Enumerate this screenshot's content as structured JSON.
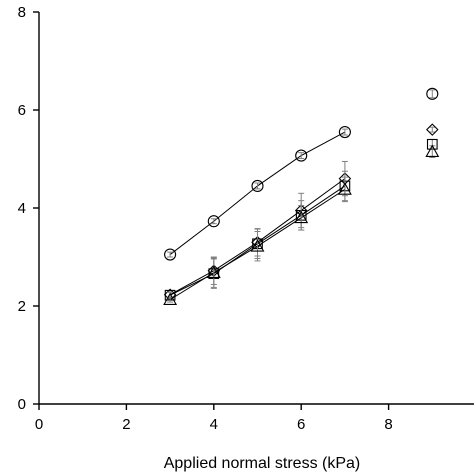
{
  "chart_data": {
    "type": "scatter",
    "title": "",
    "xlabel": "Applied normal stress (kPa)",
    "ylabel": "",
    "xlim": [
      0,
      10
    ],
    "ylim": [
      0,
      8
    ],
    "xticks": [
      0,
      2,
      4,
      6,
      8
    ],
    "yticks": [
      0,
      2,
      4,
      6,
      8
    ],
    "grid": false,
    "colors": {
      "axis": "#000000",
      "marker": "#000000",
      "errorbar": "#808080"
    },
    "series": [
      {
        "marker": "circle",
        "x": [
          3,
          4,
          5,
          6,
          7
        ],
        "y": [
          3.05,
          3.73,
          4.45,
          5.07,
          5.55
        ],
        "err": [
          0.05,
          0.05,
          0.06,
          0.06,
          0.06
        ],
        "isolated": {
          "x": 9,
          "y": 6.33,
          "err": 0.08
        }
      },
      {
        "marker": "diamond",
        "x": [
          3,
          4,
          5,
          6,
          7
        ],
        "y": [
          2.23,
          2.72,
          3.3,
          3.95,
          4.6
        ],
        "err": [
          0.06,
          0.28,
          0.28,
          0.35,
          0.35
        ],
        "isolated": {
          "x": 9,
          "y": 5.6,
          "err": 0.05
        }
      },
      {
        "marker": "square",
        "x": [
          3,
          4,
          5,
          6,
          7
        ],
        "y": [
          2.22,
          2.66,
          3.27,
          3.85,
          4.45
        ],
        "err": [
          0.06,
          0.3,
          0.3,
          0.3,
          0.3
        ],
        "isolated": {
          "x": 9,
          "y": 5.3,
          "err": 0.1
        }
      },
      {
        "marker": "triangle",
        "x": [
          3,
          4,
          5,
          6,
          7
        ],
        "y": [
          2.13,
          2.68,
          3.22,
          3.8,
          4.38
        ],
        "err": [
          0.05,
          0.3,
          0.3,
          0.25,
          0.25
        ],
        "isolated": {
          "x": 9,
          "y": 5.15,
          "err": 0.12
        }
      }
    ]
  }
}
